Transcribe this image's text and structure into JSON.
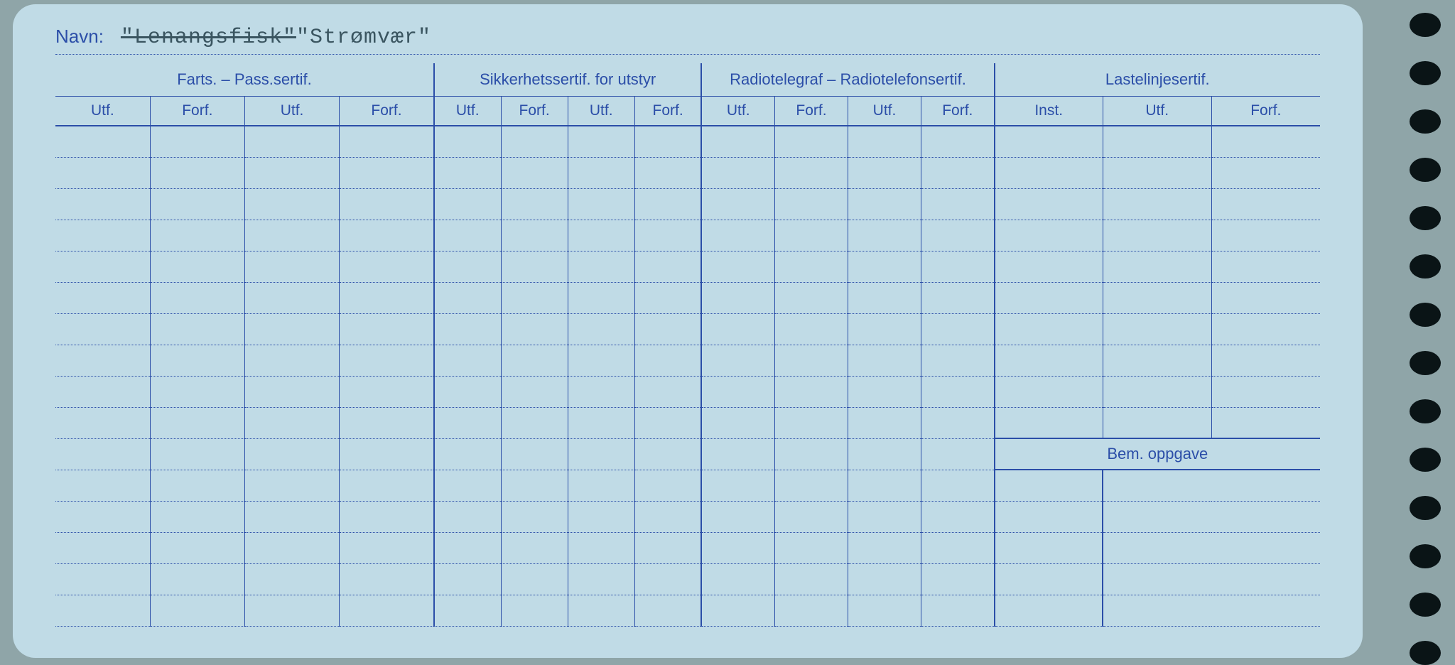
{
  "labels": {
    "navn": "Navn:"
  },
  "navn_value": {
    "strike": "\"Lenangsfisk\"",
    "rest": "\"Strømvær\""
  },
  "groups": [
    {
      "title": "Farts. – Pass.sertif.",
      "cols": [
        "Utf.",
        "Forf.",
        "Utf.",
        "Forf."
      ]
    },
    {
      "title": "Sikkerhetssertif. for utstyr",
      "cols": [
        "Utf.",
        "Forf.",
        "Utf.",
        "Forf."
      ]
    },
    {
      "title": "Radiotelegraf – Radiotelefonsertif.",
      "cols": [
        "Utf.",
        "Forf.",
        "Utf.",
        "Forf."
      ]
    },
    {
      "title": "Lastelinjesertif.",
      "cols": [
        "Inst.",
        "Utf.",
        "Forf."
      ]
    }
  ],
  "bem_label": "Bem. oppgave",
  "body_rows_before_bem": 10,
  "body_rows_after_bem": 5,
  "colors": {
    "card_bg": "#c0dbe6",
    "ink": "#2b4ea8",
    "page_bg": "#8fa5a8",
    "typed_text": "#3a5560",
    "hole": "#0a1416"
  },
  "holes": 14
}
